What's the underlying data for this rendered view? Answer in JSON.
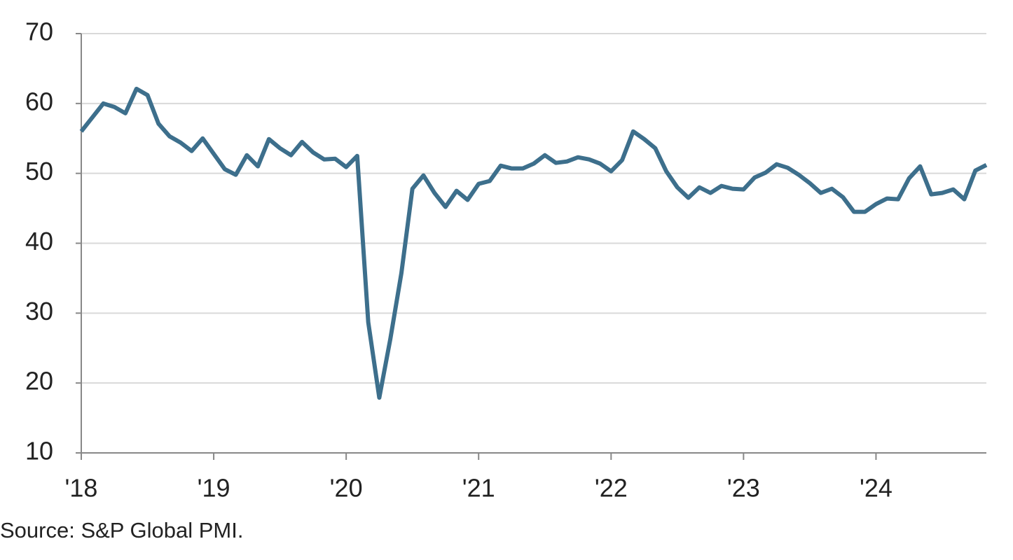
{
  "chart_data": {
    "type": "line",
    "source": "Source: S&P Global PMI.",
    "x": [
      0,
      1,
      2,
      3,
      4,
      5,
      6,
      7,
      8,
      9,
      10,
      11,
      12,
      13,
      14,
      15,
      16,
      17,
      18,
      19,
      20,
      21,
      22,
      23,
      24,
      25,
      26,
      27,
      28,
      29,
      30,
      31,
      32,
      33,
      34,
      35,
      36,
      37,
      38,
      39,
      40,
      41,
      42,
      43,
      44,
      45,
      46,
      47,
      48,
      49,
      50,
      51,
      52,
      53,
      54,
      55,
      56,
      57,
      58,
      59,
      60,
      61,
      62,
      63,
      64,
      65,
      66,
      67,
      68,
      69,
      70,
      71,
      72,
      73,
      74,
      75,
      76,
      77,
      78,
      79,
      80,
      81,
      82
    ],
    "series": [
      {
        "name": "PMI",
        "color": "#3d6f8c",
        "values": [
          56.0,
          58.0,
          60.0,
          59.5,
          58.6,
          62.1,
          61.2,
          57.1,
          55.3,
          54.4,
          53.2,
          55.0,
          52.8,
          50.6,
          49.8,
          52.6,
          51.0,
          54.9,
          53.6,
          52.6,
          54.5,
          53.0,
          52.0,
          52.1,
          50.9,
          52.5,
          28.7,
          17.9,
          26.3,
          35.7,
          47.8,
          49.7,
          47.2,
          45.2,
          47.5,
          46.2,
          48.5,
          48.9,
          51.1,
          50.7,
          50.7,
          51.4,
          52.6,
          51.5,
          51.7,
          52.3,
          52.0,
          51.4,
          50.3,
          51.9,
          56.0,
          54.9,
          53.6,
          50.3,
          48.0,
          46.5,
          48.0,
          47.2,
          48.2,
          47.8,
          47.7,
          49.4,
          50.1,
          51.3,
          50.8,
          49.8,
          48.6,
          47.2,
          47.8,
          46.6,
          44.5,
          44.5,
          45.6,
          46.4,
          46.3,
          49.3,
          51.0,
          47.0,
          47.2,
          47.7,
          46.3,
          50.4,
          51.2
        ]
      }
    ],
    "xlim": [
      0,
      82
    ],
    "xticks": [
      {
        "value": 0,
        "label": "'18"
      },
      {
        "value": 12,
        "label": "'19"
      },
      {
        "value": 24,
        "label": "'20"
      },
      {
        "value": 36,
        "label": "'21"
      },
      {
        "value": 48,
        "label": "'22"
      },
      {
        "value": 60,
        "label": "'23"
      },
      {
        "value": 72,
        "label": "'24"
      }
    ],
    "ylim": [
      10,
      70
    ],
    "yticks": [
      10,
      20,
      30,
      40,
      50,
      60,
      70
    ],
    "grid": true
  }
}
